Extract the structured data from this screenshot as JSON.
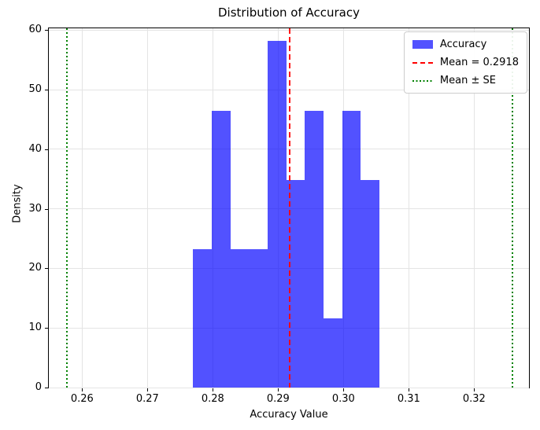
{
  "chart_data": {
    "type": "bar",
    "subtype": "histogram",
    "title": "Distribution of Accuracy",
    "xlabel": "Accuracy Value",
    "ylabel": "Density",
    "bin_edges": [
      0.277,
      0.27985,
      0.2827,
      0.28555,
      0.2884,
      0.29125,
      0.2941,
      0.29695,
      0.2998,
      0.30265,
      0.3055
    ],
    "densities": [
      23.26,
      46.51,
      23.26,
      23.26,
      58.14,
      34.88,
      46.51,
      11.63,
      46.51,
      34.88
    ],
    "mean": 0.2918,
    "se": 0.0341,
    "mean_minus_se": 0.2577,
    "mean_plus_se": 0.3259,
    "xlim": [
      0.2549,
      0.3284
    ],
    "ylim": [
      0,
      60.3
    ],
    "x_ticks": [
      0.26,
      0.27,
      0.28,
      0.29,
      0.3,
      0.31,
      0.32
    ],
    "x_tick_labels": [
      "0.26",
      "0.27",
      "0.28",
      "0.29",
      "0.30",
      "0.31",
      "0.32"
    ],
    "y_ticks": [
      0,
      10,
      20,
      30,
      40,
      50,
      60
    ],
    "y_tick_labels": [
      "0",
      "10",
      "20",
      "30",
      "40",
      "50",
      "60"
    ],
    "grid": true,
    "legend": {
      "position": "upper right",
      "items": [
        {
          "label": "Accuracy",
          "type": "patch",
          "color": "#0000ff"
        },
        {
          "label": "Mean = 0.2918",
          "type": "dashed-line",
          "color": "#ff0000"
        },
        {
          "label": "Mean ± SE",
          "type": "dotted-line",
          "color": "#008000"
        }
      ]
    },
    "colors": {
      "bar": "#0000ff",
      "bar_alpha": "0.68",
      "mean_line": "#ff0000",
      "se_line": "#008000",
      "grid": "#e4e4e4",
      "spine": "#000000"
    }
  }
}
